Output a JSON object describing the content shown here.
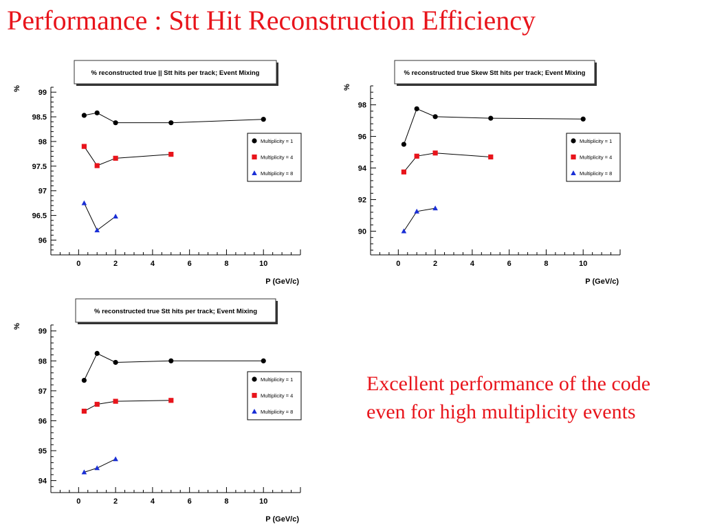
{
  "page": {
    "title": "Performance : Stt Hit Reconstruction Efficiency",
    "note": "Excellent performance of the code even for high multiplicity events"
  },
  "chart_data": [
    {
      "type": "scatter",
      "title": "% reconstructed true || Stt hits per track; Event Mixing",
      "xlabel": "P (GeV/c)",
      "ylabel": "%",
      "xlim": [
        -1.5,
        12
      ],
      "ylim": [
        95.7,
        99.1
      ],
      "xticks": [
        0,
        2,
        4,
        6,
        8,
        10
      ],
      "yticks": [
        96,
        96.5,
        97,
        97.5,
        98,
        98.5,
        99
      ],
      "ytick_labels": [
        "96",
        "96.5",
        "97",
        "97.5",
        "98",
        "98.5",
        "99"
      ],
      "legend_position": "right",
      "series": [
        {
          "name": "Multiplicity = 1",
          "marker": "circle",
          "color": "#000000",
          "x": [
            0.3,
            1,
            2,
            5,
            10
          ],
          "y": [
            98.53,
            98.58,
            98.38,
            98.38,
            98.45
          ]
        },
        {
          "name": "Multiplicity = 4",
          "marker": "square",
          "color": "#e8141b",
          "x": [
            0.3,
            1,
            2,
            5
          ],
          "y": [
            97.9,
            97.51,
            97.66,
            97.74
          ]
        },
        {
          "name": "Multiplicity = 8",
          "marker": "triangle",
          "color": "#1a2fd6",
          "x": [
            0.3,
            1,
            2
          ],
          "y": [
            96.75,
            96.2,
            96.48
          ]
        }
      ]
    },
    {
      "type": "scatter",
      "title": "% reconstructed true Skew Stt hits per track; Event Mixing",
      "xlabel": "P (GeV/c)",
      "ylabel": "%",
      "xlim": [
        -1.5,
        12
      ],
      "ylim": [
        88.5,
        99.2
      ],
      "xticks": [
        0,
        2,
        4,
        6,
        8,
        10
      ],
      "yticks": [
        90,
        92,
        94,
        96,
        98
      ],
      "ytick_labels": [
        "90",
        "92",
        "94",
        "96",
        "98"
      ],
      "legend_position": "right",
      "series": [
        {
          "name": "Multiplicity = 1",
          "marker": "circle",
          "color": "#000000",
          "x": [
            0.3,
            1,
            2,
            5,
            10
          ],
          "y": [
            95.5,
            97.75,
            97.25,
            97.15,
            97.1
          ]
        },
        {
          "name": "Multiplicity = 4",
          "marker": "square",
          "color": "#e8141b",
          "x": [
            0.3,
            1,
            2,
            5
          ],
          "y": [
            93.75,
            94.75,
            94.95,
            94.7
          ]
        },
        {
          "name": "Multiplicity = 8",
          "marker": "triangle",
          "color": "#1a2fd6",
          "x": [
            0.3,
            1,
            2
          ],
          "y": [
            90,
            91.25,
            91.45
          ]
        }
      ]
    },
    {
      "type": "scatter",
      "title": "% reconstructed true Stt hits per track; Event Mixing",
      "xlabel": "P (GeV/c)",
      "ylabel": "%",
      "xlim": [
        -1.5,
        12
      ],
      "ylim": [
        93.6,
        99.2
      ],
      "xticks": [
        0,
        2,
        4,
        6,
        8,
        10
      ],
      "yticks": [
        94,
        95,
        96,
        97,
        98,
        99
      ],
      "ytick_labels": [
        "94",
        "95",
        "96",
        "97",
        "98",
        "99"
      ],
      "legend_position": "right",
      "series": [
        {
          "name": "Multiplicity = 1",
          "marker": "circle",
          "color": "#000000",
          "x": [
            0.3,
            1,
            2,
            5,
            10
          ],
          "y": [
            97.35,
            98.25,
            97.95,
            98,
            98
          ]
        },
        {
          "name": "Multiplicity = 4",
          "marker": "square",
          "color": "#e8141b",
          "x": [
            0.3,
            1,
            2,
            5
          ],
          "y": [
            96.32,
            96.55,
            96.65,
            96.68
          ]
        },
        {
          "name": "Multiplicity = 8",
          "marker": "triangle",
          "color": "#1a2fd6",
          "x": [
            0.3,
            1,
            2
          ],
          "y": [
            94.28,
            94.42,
            94.72
          ]
        }
      ]
    }
  ]
}
